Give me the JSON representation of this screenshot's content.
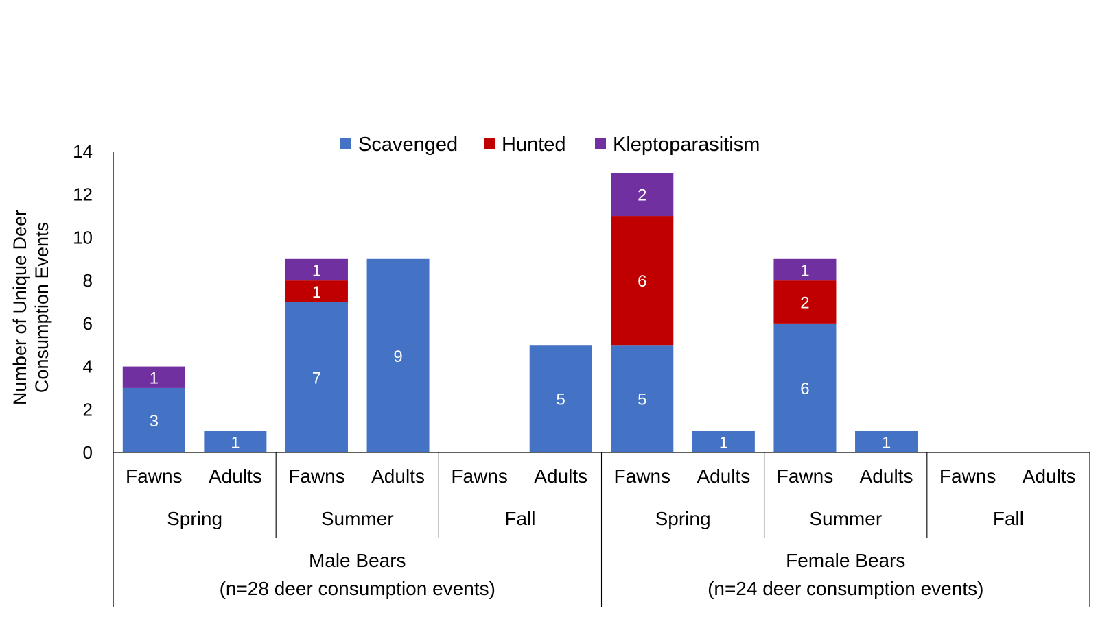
{
  "chart_data": {
    "type": "bar",
    "stacked": true,
    "title": "",
    "ylabel": "Number of Unique Deer Consumption Events",
    "ylabel_lines": [
      "Number of Unique Deer",
      "Consumption Events"
    ],
    "ylim": [
      0,
      14
    ],
    "yticks": [
      0,
      2,
      4,
      6,
      8,
      10,
      12,
      14
    ],
    "grid": false,
    "legend_position": "top-center",
    "categories": [
      {
        "label": "Fawns",
        "season": "Spring",
        "group": "Male Bears"
      },
      {
        "label": "Adults",
        "season": "Spring",
        "group": "Male Bears"
      },
      {
        "label": "Fawns",
        "season": "Summer",
        "group": "Male Bears"
      },
      {
        "label": "Adults",
        "season": "Summer",
        "group": "Male Bears"
      },
      {
        "label": "Fawns",
        "season": "Fall",
        "group": "Male Bears"
      },
      {
        "label": "Adults",
        "season": "Fall",
        "group": "Male Bears"
      },
      {
        "label": "Fawns",
        "season": "Spring",
        "group": "Female Bears"
      },
      {
        "label": "Adults",
        "season": "Spring",
        "group": "Female Bears"
      },
      {
        "label": "Fawns",
        "season": "Summer",
        "group": "Female Bears"
      },
      {
        "label": "Adults",
        "season": "Summer",
        "group": "Female Bears"
      },
      {
        "label": "Fawns",
        "season": "Fall",
        "group": "Female Bears"
      },
      {
        "label": "Adults",
        "season": "Fall",
        "group": "Female Bears"
      }
    ],
    "seasons": [
      {
        "label": "Spring",
        "start": 0,
        "count": 2
      },
      {
        "label": "Summer",
        "start": 2,
        "count": 2
      },
      {
        "label": "Fall",
        "start": 4,
        "count": 2
      },
      {
        "label": "Spring",
        "start": 6,
        "count": 2
      },
      {
        "label": "Summer",
        "start": 8,
        "count": 2
      },
      {
        "label": "Fall",
        "start": 10,
        "count": 2
      }
    ],
    "groups": [
      {
        "line1": "Male Bears",
        "line2": "(n=28 deer consumption events)",
        "start": 0,
        "count": 6
      },
      {
        "line1": "Female Bears",
        "line2": "(n=24 deer consumption events)",
        "start": 6,
        "count": 6
      }
    ],
    "series": [
      {
        "name": "Scavenged",
        "color": "#4472C4",
        "values": [
          3,
          1,
          7,
          9,
          0,
          5,
          5,
          1,
          6,
          1,
          0,
          0
        ]
      },
      {
        "name": "Hunted",
        "color": "#C00000",
        "values": [
          0,
          0,
          1,
          0,
          0,
          0,
          6,
          0,
          2,
          0,
          0,
          0
        ]
      },
      {
        "name": "Kleptoparasitism",
        "color": "#7030A0",
        "values": [
          1,
          0,
          1,
          0,
          0,
          0,
          2,
          0,
          1,
          0,
          0,
          0
        ]
      }
    ]
  }
}
